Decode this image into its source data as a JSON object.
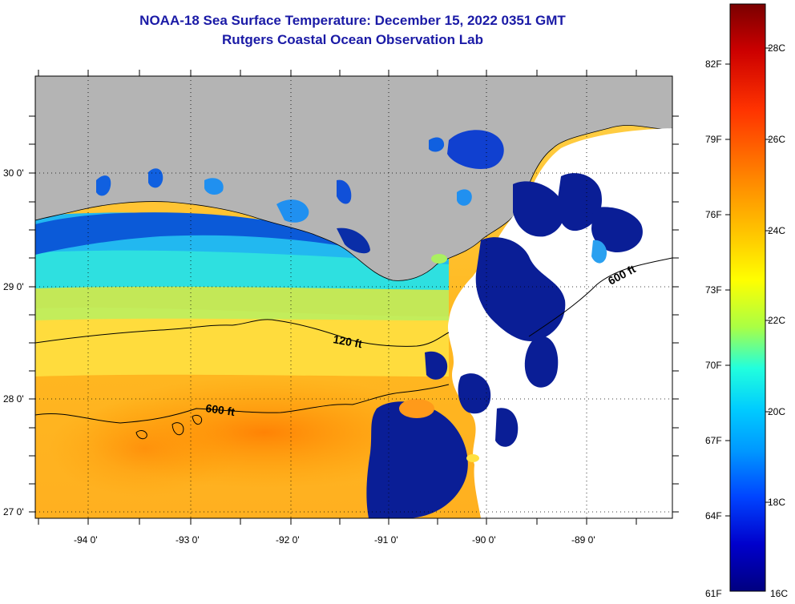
{
  "header": {
    "title": "NOAA-18 Sea Surface Temperature:  December 15, 2022 0351 GMT",
    "subtitle": "Rutgers Coastal Ocean Observation Lab"
  },
  "map": {
    "longitude_labels": [
      "-94 0'",
      "-93 0'",
      "-92 0'",
      "-91 0'",
      "-90 0'",
      "-89 0'"
    ],
    "latitude_labels": [
      "30 0'",
      "29 0'",
      "28 0'",
      "27 0'"
    ],
    "contours": [
      {
        "label": "120 ft"
      },
      {
        "label": "600 ft"
      },
      {
        "label": "600 ft"
      }
    ],
    "colors": {
      "land": "#b4b4b4",
      "cloud": "#ffffff",
      "coast_line": "#000000"
    }
  },
  "colorbar": {
    "fahrenheit_labels": [
      "82F",
      "79F",
      "76F",
      "73F",
      "70F",
      "67F",
      "64F",
      "61F"
    ],
    "celsius_labels": [
      "28C",
      "26C",
      "24C",
      "22C",
      "20C",
      "18C",
      "16C"
    ],
    "range_celsius": [
      16,
      29.5
    ],
    "gradient_colors": [
      "#7a0000",
      "#cc0000",
      "#ff3300",
      "#ff8800",
      "#ffcc00",
      "#ffff00",
      "#aaff44",
      "#22ffdd",
      "#00ccff",
      "#0099ff",
      "#0044ff",
      "#0000cc",
      "#000080"
    ]
  }
}
